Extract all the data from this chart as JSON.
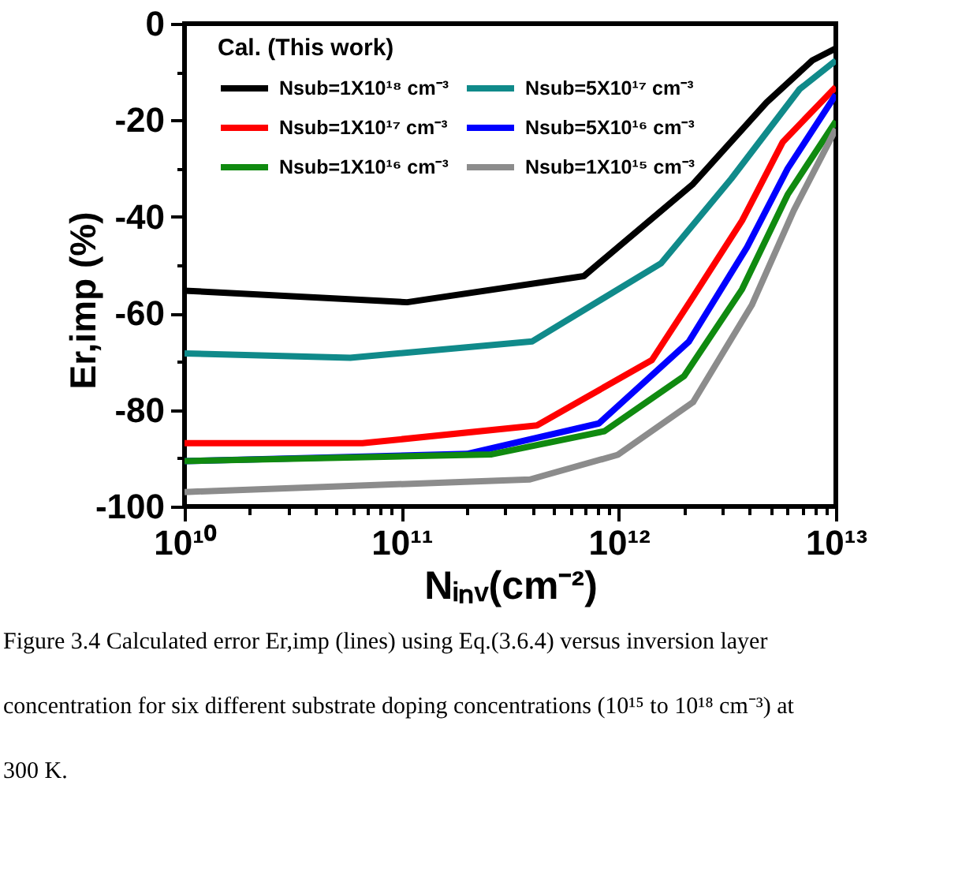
{
  "chart_data": {
    "type": "line",
    "xlabel": "Nᵢₙᵥ(cm⁻²)",
    "ylabel": "Er,imp (%)",
    "legend_title": "Cal. (This work)",
    "legend": "top left",
    "log": "x",
    "line_style": "solid",
    "xlim": [
      10000000000.0,
      10000000000000.0
    ],
    "xticks": [
      {
        "value": 10000000000.0,
        "label": "10¹⁰"
      },
      {
        "value": 20000000000.0,
        "label": null
      },
      {
        "value": 30000000000.0,
        "label": null
      },
      {
        "value": 40000000000.0,
        "label": null
      },
      {
        "value": 50000000000.0,
        "label": null
      },
      {
        "value": 60000000000.0,
        "label": null
      },
      {
        "value": 70000000000.0,
        "label": null
      },
      {
        "value": 80000000000.0,
        "label": null
      },
      {
        "value": 90000000000.0,
        "label": null
      },
      {
        "value": 100000000000.0,
        "label": "10¹¹"
      },
      {
        "value": 200000000000.0,
        "label": null
      },
      {
        "value": 300000000000.0,
        "label": null
      },
      {
        "value": 400000000000.0,
        "label": null
      },
      {
        "value": 500000000000.0,
        "label": null
      },
      {
        "value": 600000000000.0,
        "label": null
      },
      {
        "value": 700000000000.0,
        "label": null
      },
      {
        "value": 800000000000.0,
        "label": null
      },
      {
        "value": 900000000000.0,
        "label": null
      },
      {
        "value": 1000000000000.0,
        "label": "10¹²"
      },
      {
        "value": 2000000000000.0,
        "label": null
      },
      {
        "value": 3000000000000.0,
        "label": null
      },
      {
        "value": 4000000000000.0,
        "label": null
      },
      {
        "value": 5000000000000.0,
        "label": null
      },
      {
        "value": 6000000000000.0,
        "label": null
      },
      {
        "value": 7000000000000.0,
        "label": null
      },
      {
        "value": 8000000000000.0,
        "label": null
      },
      {
        "value": 9000000000000.0,
        "label": null
      },
      {
        "value": 10000000000000.0,
        "label": "10¹³"
      }
    ],
    "ylim": [
      -100,
      0
    ],
    "yticks": [
      -100,
      {
        "value": -90,
        "label": null
      },
      -80,
      {
        "value": -70,
        "label": null
      },
      -60,
      {
        "value": -50,
        "label": null
      },
      -40,
      {
        "value": -30,
        "label": null
      },
      -20,
      {
        "value": -10,
        "label": null
      },
      0
    ],
    "series": [
      {
        "name": "Nsub=1X10¹⁸ cm⁻³",
        "color": "#000000",
        "x": [
          10000000000.0,
          106000000000.0,
          690000000000.0,
          2200000000000.0,
          4800000000000.0,
          7800000000000.0,
          10000000000000.0
        ],
        "values": [
          -55.3,
          -57.7,
          -52.3,
          -33.2,
          -16.3,
          -7.6,
          -5.1
        ]
      },
      {
        "name": "Nsub=5X10¹⁷ cm⁻³",
        "color": "#108a8a",
        "x": [
          10000000000.0,
          58000000000.0,
          400000000000.0,
          1570000000000.0,
          3300000000000.0,
          6800000000000.0,
          10000000000000.0
        ],
        "values": [
          -68.3,
          -69.2,
          -65.8,
          -49.6,
          -32.1,
          -13.6,
          -7.6
        ]
      },
      {
        "name": "Nsub=1X10¹⁷ cm⁻³",
        "color": "#ff0000",
        "x": [
          10000000000.0,
          66000000000.0,
          420000000000.0,
          1420000000000.0,
          2200000000000.0,
          3700000000000.0,
          5700000000000.0,
          10000000000000.0
        ],
        "values": [
          -86.9,
          -86.9,
          -83.2,
          -69.7,
          -56.6,
          -40.8,
          -24.5,
          -13.1
        ]
      },
      {
        "name": "Nsub=5X10¹⁶ cm⁻³",
        "color": "#0000ff",
        "x": [
          10000000000.0,
          200000000000.0,
          810000000000.0,
          2100000000000.0,
          3900000000000.0,
          6000000000000.0,
          10000000000000.0
        ],
        "values": [
          -90.6,
          -89.1,
          -82.8,
          -65.9,
          -46.3,
          -30.0,
          -14.7
        ]
      },
      {
        "name": "Nsub=1X10¹⁶ cm⁻³",
        "color": "#108a10",
        "x": [
          10000000000.0,
          260000000000.0,
          860000000000.0,
          2000000000000.0,
          3700000000000.0,
          6000000000000.0,
          10000000000000.0
        ],
        "values": [
          -90.6,
          -89.2,
          -84.4,
          -73.0,
          -55.0,
          -35.4,
          -20.2
        ]
      },
      {
        "name": "Nsub=1X10¹⁵ cm⁻³",
        "color": "#8c8c8c",
        "x": [
          10000000000.0,
          390000000000.0,
          990000000000.0,
          2200000000000.0,
          4100000000000.0,
          6400000000000.0,
          10000000000000.0
        ],
        "values": [
          -97.0,
          -94.4,
          -89.3,
          -78.4,
          -58.3,
          -38.7,
          -21.8
        ]
      }
    ],
    "annotations": [
      "Figure 3.4     Calculated error Er,imp (lines) using Eq.(3.6.4) versus inversion layer concentration for six different substrate doping concentrations (10¹⁵ to 10¹⁸ cm⁻³) at 300 K."
    ]
  }
}
